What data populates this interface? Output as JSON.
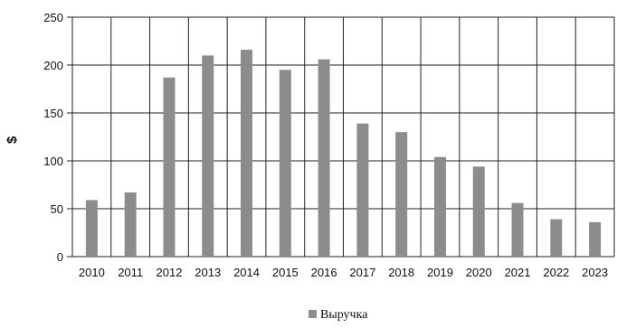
{
  "chart_data": {
    "type": "bar",
    "categories": [
      "2010",
      "2011",
      "2012",
      "2013",
      "2014",
      "2015",
      "2016",
      "2017",
      "2018",
      "2019",
      "2020",
      "2021",
      "2022",
      "2023"
    ],
    "series": [
      {
        "name": "Выручка",
        "values": [
          59,
          67,
          187,
          210,
          216,
          195,
          206,
          139,
          130,
          104,
          94,
          56,
          39,
          36
        ]
      }
    ],
    "ylabel": "$",
    "xlabel": "",
    "ylim": [
      0,
      250
    ],
    "yticks": [
      "0",
      "50",
      "100",
      "150",
      "200",
      "250"
    ],
    "grid": true,
    "legend": "bottom-center",
    "colors": {
      "bar": "#8c8c8c",
      "grid": "#222222"
    }
  }
}
